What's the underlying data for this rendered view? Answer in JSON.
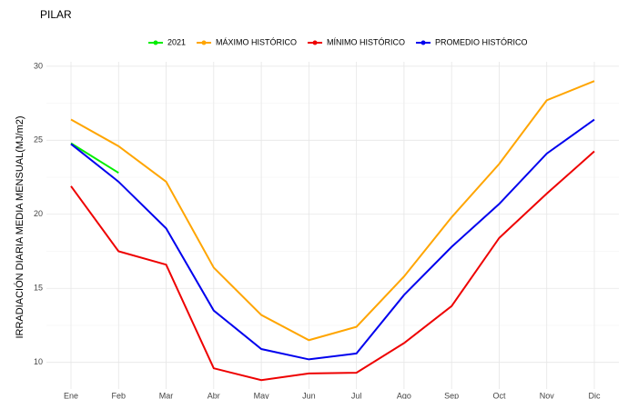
{
  "chart_data": {
    "type": "line",
    "title": "PILAR",
    "y_label": "IRRADIACIÓN DIARIA MEDIA MENSUAL(MJ/m2)",
    "categories": [
      "Ene",
      "Feb",
      "Mar",
      "Abr",
      "May",
      "Jun",
      "Jul",
      "Ago",
      "Sep",
      "Oct",
      "Nov",
      "Dic"
    ],
    "series": [
      {
        "name": "2021",
        "color": "#00ee00",
        "values": [
          24.8,
          22.8,
          null,
          null,
          null,
          null,
          null,
          null,
          null,
          null,
          null,
          null
        ]
      },
      {
        "name": "MÁXIMO HISTÓRICO",
        "color": "#ffa500",
        "values": [
          26.4,
          24.6,
          22.2,
          16.4,
          13.2,
          11.5,
          12.4,
          15.8,
          19.8,
          23.4,
          27.7,
          29.0
        ]
      },
      {
        "name": "MÍNIMO HISTÓRICO",
        "color": "#ee0000",
        "values": [
          21.9,
          17.5,
          16.6,
          9.6,
          8.8,
          9.25,
          9.3,
          11.3,
          13.8,
          18.4,
          21.4,
          24.25
        ]
      },
      {
        "name": "PROMEDIO HISTÓRICO",
        "color": "#0000ee",
        "values": [
          24.75,
          22.2,
          19.05,
          13.5,
          10.9,
          10.2,
          10.6,
          14.55,
          17.8,
          20.7,
          24.1,
          26.4
        ]
      }
    ],
    "ylim": [
      8.2,
      30.3
    ],
    "yticks": [
      10,
      15,
      20,
      25,
      30
    ],
    "grid": true,
    "legend": "top"
  }
}
